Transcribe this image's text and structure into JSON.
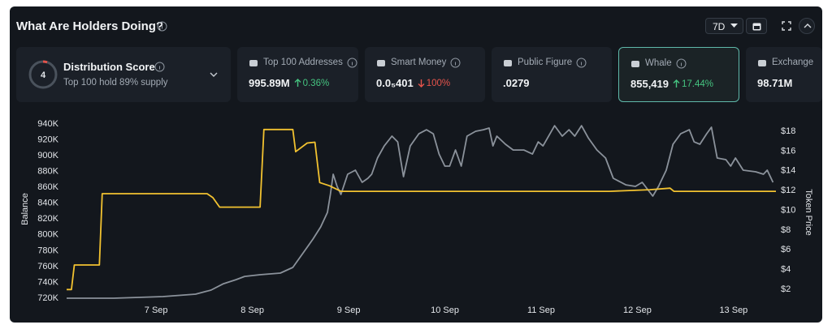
{
  "header": {
    "title": "What Are Holders Doing?",
    "period": "7D"
  },
  "score_card": {
    "score": 4,
    "label": "Distribution Score",
    "subtitle": "Top 100 hold 89% supply"
  },
  "cards": [
    {
      "label": "Top 100 Addresses",
      "value": "995.89M",
      "change": "0.36%",
      "direction": "up"
    },
    {
      "label": "Smart Money",
      "value": "0.0₅401",
      "change": "100%",
      "direction": "down"
    },
    {
      "label": "Public Figure",
      "value": ".0279"
    },
    {
      "label": "Whale",
      "value": "855,419",
      "change": "17.44%",
      "direction": "up",
      "selected": true
    },
    {
      "label": "Exchange",
      "value": "98.71M"
    }
  ],
  "chart_data": {
    "type": "line",
    "y_label": "Balance",
    "y2_label": "Token Price",
    "grid": false,
    "xlim": [
      6.07,
      13.44
    ],
    "xticks": [
      {
        "value": 7,
        "label": "7 Sep"
      },
      {
        "value": 8,
        "label": "8 Sep"
      },
      {
        "value": 9,
        "label": "9 Sep"
      },
      {
        "value": 10,
        "label": "10 Sep"
      },
      {
        "value": 11,
        "label": "11 Sep"
      },
      {
        "value": 12,
        "label": "12 Sep"
      },
      {
        "value": 13,
        "label": "13 Sep"
      }
    ],
    "ylim": [
      720000,
      940000
    ],
    "yticks": [
      {
        "value": 720000,
        "label": "720K"
      },
      {
        "value": 740000,
        "label": "740K"
      },
      {
        "value": 760000,
        "label": "760K"
      },
      {
        "value": 780000,
        "label": "780K"
      },
      {
        "value": 800000,
        "label": "800K"
      },
      {
        "value": 820000,
        "label": "820K"
      },
      {
        "value": 840000,
        "label": "840K"
      },
      {
        "value": 860000,
        "label": "860K"
      },
      {
        "value": 880000,
        "label": "880K"
      },
      {
        "value": 900000,
        "label": "900K"
      },
      {
        "value": 920000,
        "label": "920K"
      },
      {
        "value": 940000,
        "label": "940K"
      }
    ],
    "y2lim": [
      1.1,
      18.74
    ],
    "y2ticks": [
      {
        "value": 2,
        "label": "$2"
      },
      {
        "value": 4,
        "label": "$4"
      },
      {
        "value": 6,
        "label": "$6"
      },
      {
        "value": 8,
        "label": "$8"
      },
      {
        "value": 10,
        "label": "$10"
      },
      {
        "value": 12,
        "label": "$12"
      },
      {
        "value": 14,
        "label": "$14"
      },
      {
        "value": 16,
        "label": "$16"
      },
      {
        "value": 18,
        "label": "$18"
      }
    ],
    "series": [
      {
        "color": "#8b929b",
        "axis": "y2",
        "x": [
          6.07,
          6.56,
          7.07,
          7.41,
          7.57,
          7.7,
          7.83,
          7.92,
          8.08,
          8.29,
          8.42,
          8.54,
          8.63,
          8.71,
          8.78,
          8.81,
          8.84,
          8.88,
          8.92,
          8.99,
          9.07,
          9.14,
          9.2,
          9.24,
          9.3,
          9.37,
          9.45,
          9.51,
          9.57,
          9.64,
          9.73,
          9.81,
          9.88,
          9.94,
          10.0,
          10.05,
          10.11,
          10.17,
          10.23,
          10.32,
          10.4,
          10.46,
          10.5,
          10.54,
          10.63,
          10.71,
          10.82,
          10.91,
          10.97,
          11.02,
          11.14,
          11.22,
          11.29,
          11.35,
          11.42,
          11.49,
          11.58,
          11.67,
          11.75,
          11.88,
          11.98,
          12.05,
          12.16,
          12.22,
          12.3,
          12.37,
          12.45,
          12.54,
          12.59,
          12.65,
          12.72,
          12.77,
          12.83,
          12.92,
          12.97,
          13.02,
          13.1,
          13.23,
          13.31,
          13.35,
          13.41
        ],
        "values": [
          1.1,
          1.1,
          1.26,
          1.51,
          1.92,
          2.57,
          2.98,
          3.31,
          3.48,
          3.64,
          4.22,
          5.86,
          7.09,
          8.32,
          9.79,
          11.6,
          13.65,
          12.42,
          11.6,
          13.65,
          14.06,
          12.83,
          13.24,
          13.65,
          15.29,
          16.52,
          17.51,
          16.93,
          13.41,
          16.52,
          17.75,
          18.16,
          17.75,
          15.7,
          14.47,
          14.47,
          16.11,
          14.47,
          17.51,
          18.0,
          18.16,
          18.33,
          16.52,
          17.51,
          16.69,
          16.11,
          16.11,
          15.7,
          16.93,
          16.52,
          18.57,
          17.51,
          18.16,
          17.51,
          18.57,
          17.34,
          16.11,
          15.29,
          13.24,
          12.58,
          12.42,
          12.83,
          11.44,
          12.42,
          14.06,
          16.69,
          17.75,
          18.16,
          16.93,
          16.69,
          17.75,
          18.41,
          15.29,
          15.13,
          14.47,
          15.29,
          14.06,
          13.9,
          13.65,
          14.06,
          12.83
        ]
      },
      {
        "color": "#f2c230",
        "x": [
          6.07,
          6.12,
          6.15,
          6.41,
          6.44,
          7.53,
          7.59,
          7.66,
          8.08,
          8.12,
          8.42,
          8.45,
          8.57,
          8.65,
          8.7,
          8.8,
          8.92,
          11.71,
          12.13,
          12.34,
          12.38,
          13.44
        ],
        "values": [
          731000,
          731000,
          762000,
          762000,
          852000,
          852000,
          847000,
          835000,
          835000,
          933000,
          933000,
          905000,
          916000,
          917000,
          866000,
          862000,
          855000,
          855000,
          857000,
          859000,
          855000,
          855000
        ]
      }
    ]
  }
}
